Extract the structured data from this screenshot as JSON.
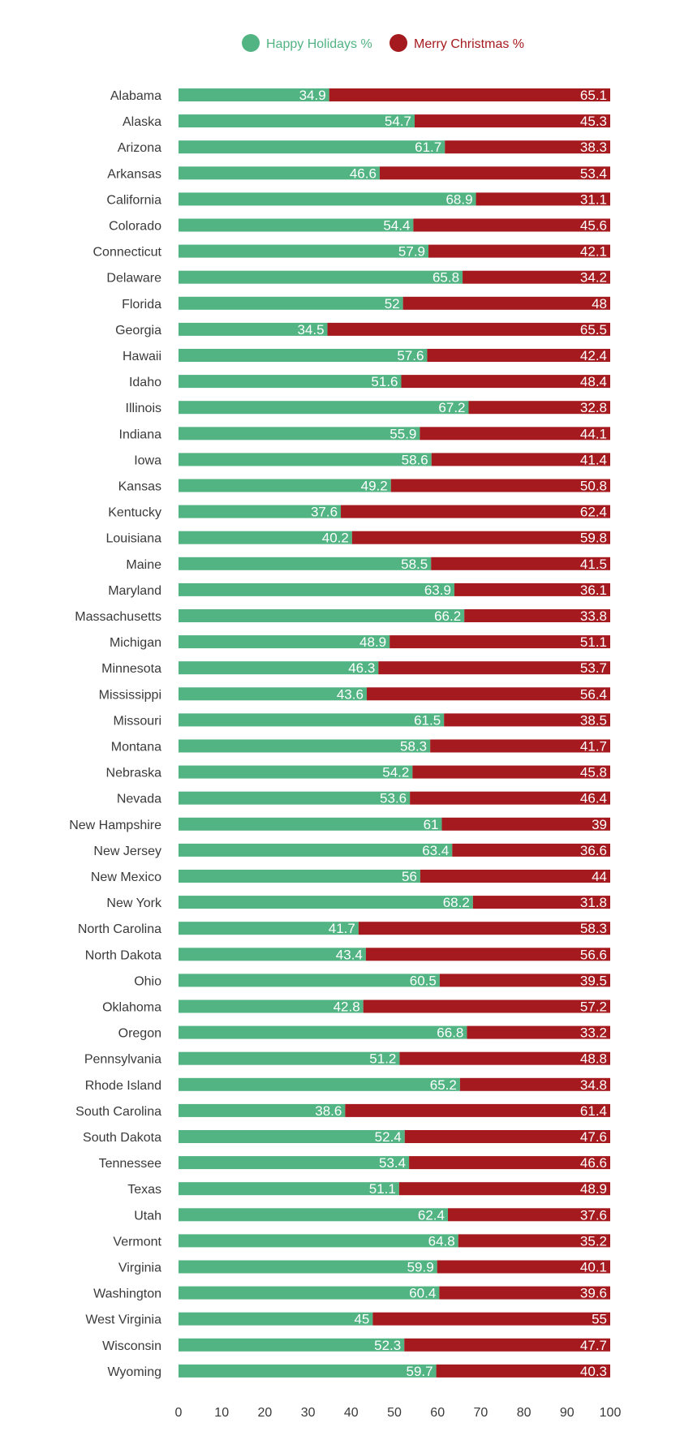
{
  "chart_data": {
    "type": "bar",
    "orientation": "horizontal",
    "stacked": true,
    "categories": [
      "Alabama",
      "Alaska",
      "Arizona",
      "Arkansas",
      "California",
      "Colorado",
      "Connecticut",
      "Delaware",
      "Florida",
      "Georgia",
      "Hawaii",
      "Idaho",
      "Illinois",
      "Indiana",
      "Iowa",
      "Kansas",
      "Kentucky",
      "Louisiana",
      "Maine",
      "Maryland",
      "Massachusetts",
      "Michigan",
      "Minnesota",
      "Mississippi",
      "Missouri",
      "Montana",
      "Nebraska",
      "Nevada",
      "New Hampshire",
      "New Jersey",
      "New Mexico",
      "New York",
      "North Carolina",
      "North Dakota",
      "Ohio",
      "Oklahoma",
      "Oregon",
      "Pennsylvania",
      "Rhode Island",
      "South Carolina",
      "South Dakota",
      "Tennessee",
      "Texas",
      "Utah",
      "Vermont",
      "Virginia",
      "Washington",
      "West Virginia",
      "Wisconsin",
      "Wyoming"
    ],
    "series": [
      {
        "name": "Happy Holidays %",
        "color": "#52b383",
        "values": [
          34.9,
          54.7,
          61.7,
          46.6,
          68.9,
          54.4,
          57.9,
          65.8,
          52,
          34.5,
          57.6,
          51.6,
          67.2,
          55.9,
          58.6,
          49.2,
          37.6,
          40.2,
          58.5,
          63.9,
          66.2,
          48.9,
          46.3,
          43.6,
          61.5,
          58.3,
          54.2,
          53.6,
          61,
          63.4,
          56,
          68.2,
          41.7,
          43.4,
          60.5,
          42.8,
          66.8,
          51.2,
          65.2,
          38.6,
          52.4,
          53.4,
          51.1,
          62.4,
          64.8,
          59.9,
          60.4,
          45,
          52.3,
          59.7
        ]
      },
      {
        "name": "Merry Christmas %",
        "color": "#a51a1e",
        "values": [
          65.1,
          45.3,
          38.3,
          53.4,
          31.1,
          45.6,
          42.1,
          34.2,
          48,
          65.5,
          42.4,
          48.4,
          32.8,
          44.1,
          41.4,
          50.8,
          62.4,
          59.8,
          41.5,
          36.1,
          33.8,
          51.1,
          53.7,
          56.4,
          38.5,
          41.7,
          45.8,
          46.4,
          39,
          36.6,
          44,
          31.8,
          58.3,
          56.6,
          39.5,
          57.2,
          33.2,
          48.8,
          34.8,
          61.4,
          47.6,
          46.6,
          48.9,
          37.6,
          35.2,
          40.1,
          39.6,
          55,
          47.7,
          40.3
        ]
      }
    ],
    "xlim": [
      0,
      100
    ],
    "xticks": [
      0,
      10,
      20,
      30,
      40,
      50,
      60,
      70,
      80,
      90,
      100
    ],
    "title": "",
    "xlabel": "",
    "ylabel": "",
    "legend": "top-center",
    "grid": false
  }
}
